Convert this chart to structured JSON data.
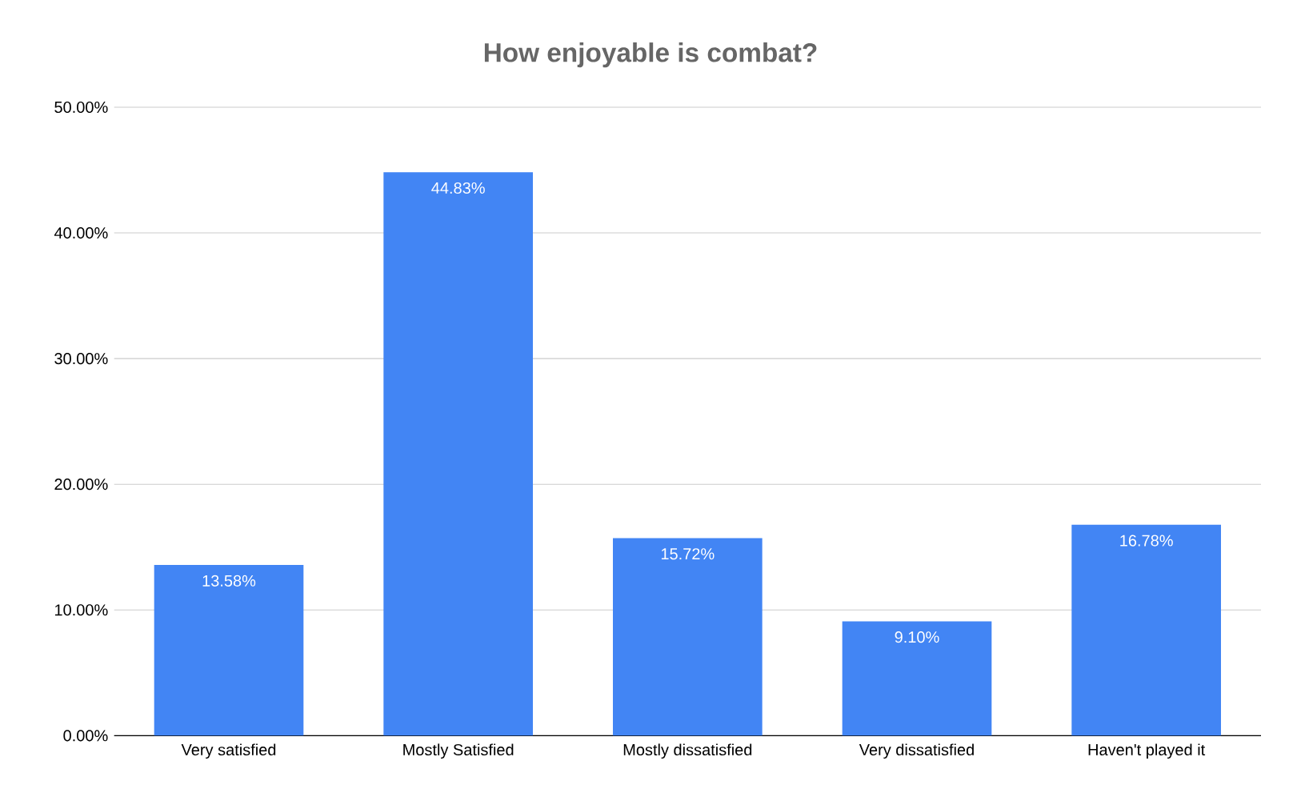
{
  "chart_data": {
    "type": "bar",
    "title": "How enjoyable is combat?",
    "categories": [
      "Very satisfied",
      "Mostly Satisfied",
      "Mostly dissatisfied",
      "Very dissatisfied",
      "Haven't played it"
    ],
    "values": [
      13.58,
      44.83,
      15.72,
      9.1,
      16.78
    ],
    "value_labels": [
      "13.58%",
      "44.83%",
      "15.72%",
      "9.10%",
      "16.78%"
    ],
    "color": "#4285f4",
    "ylim": [
      0,
      50
    ],
    "yticks": [
      {
        "value": 0,
        "label": "0.00%"
      },
      {
        "value": 10,
        "label": "10.00%"
      },
      {
        "value": 20,
        "label": "20.00%"
      },
      {
        "value": 30,
        "label": "30.00%"
      },
      {
        "value": 40,
        "label": "40.00%"
      },
      {
        "value": 50,
        "label": "50.00%"
      }
    ],
    "grid": true
  }
}
